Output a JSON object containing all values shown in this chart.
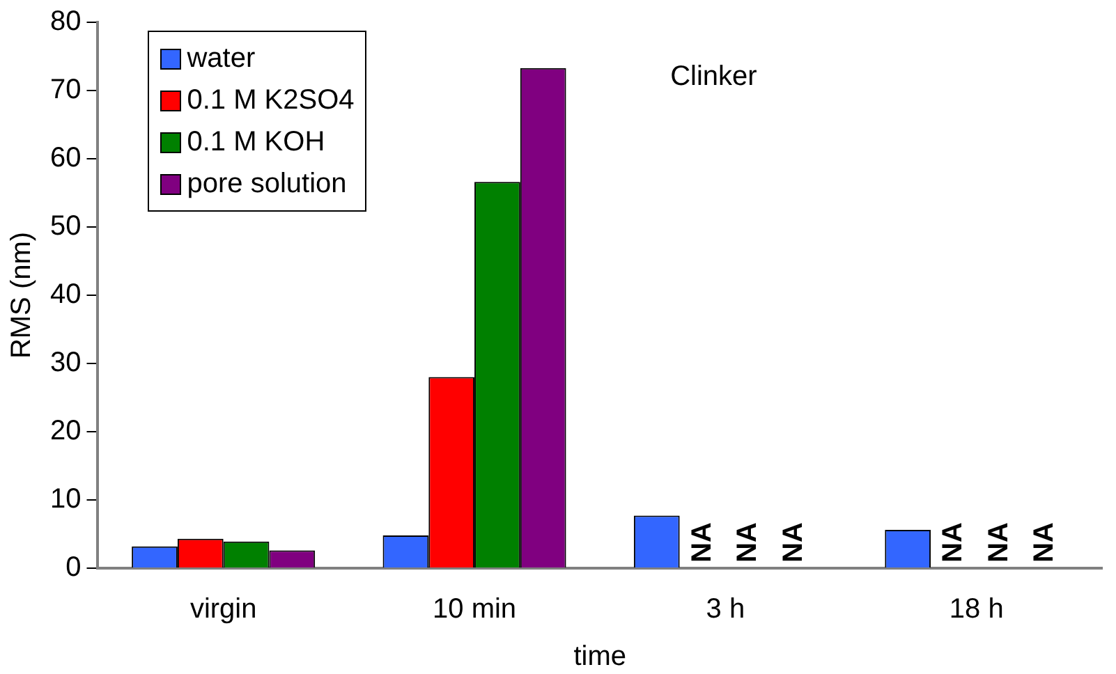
{
  "chart_data": {
    "type": "bar",
    "xlabel": "time",
    "ylabel": "RMS (nm)",
    "annotations": [
      "Clinker"
    ],
    "categories": [
      "virgin",
      "10 min",
      "3 h",
      "18 h"
    ],
    "series": [
      {
        "name": "water",
        "color": "#3366ff",
        "values": [
          3.2,
          4.8,
          7.7,
          5.6
        ]
      },
      {
        "name": "0.1 M K2SO4",
        "color": "#ff0000",
        "values": [
          4.3,
          28.0,
          null,
          null
        ],
        "value_labels": [
          null,
          null,
          "NA",
          "NA"
        ]
      },
      {
        "name": "0.1 M KOH",
        "color": "#008000",
        "values": [
          3.9,
          56.6,
          null,
          null
        ],
        "value_labels": [
          null,
          null,
          "NA",
          "NA"
        ]
      },
      {
        "name": "pore solution",
        "color": "#800080",
        "values": [
          2.6,
          73.3,
          null,
          null
        ],
        "value_labels": [
          null,
          null,
          "NA",
          "NA"
        ]
      }
    ],
    "ylim": [
      0,
      80
    ],
    "yticks": [
      0,
      10,
      20,
      30,
      40,
      50,
      60,
      70,
      80
    ],
    "grid": false,
    "legend": "top left"
  }
}
